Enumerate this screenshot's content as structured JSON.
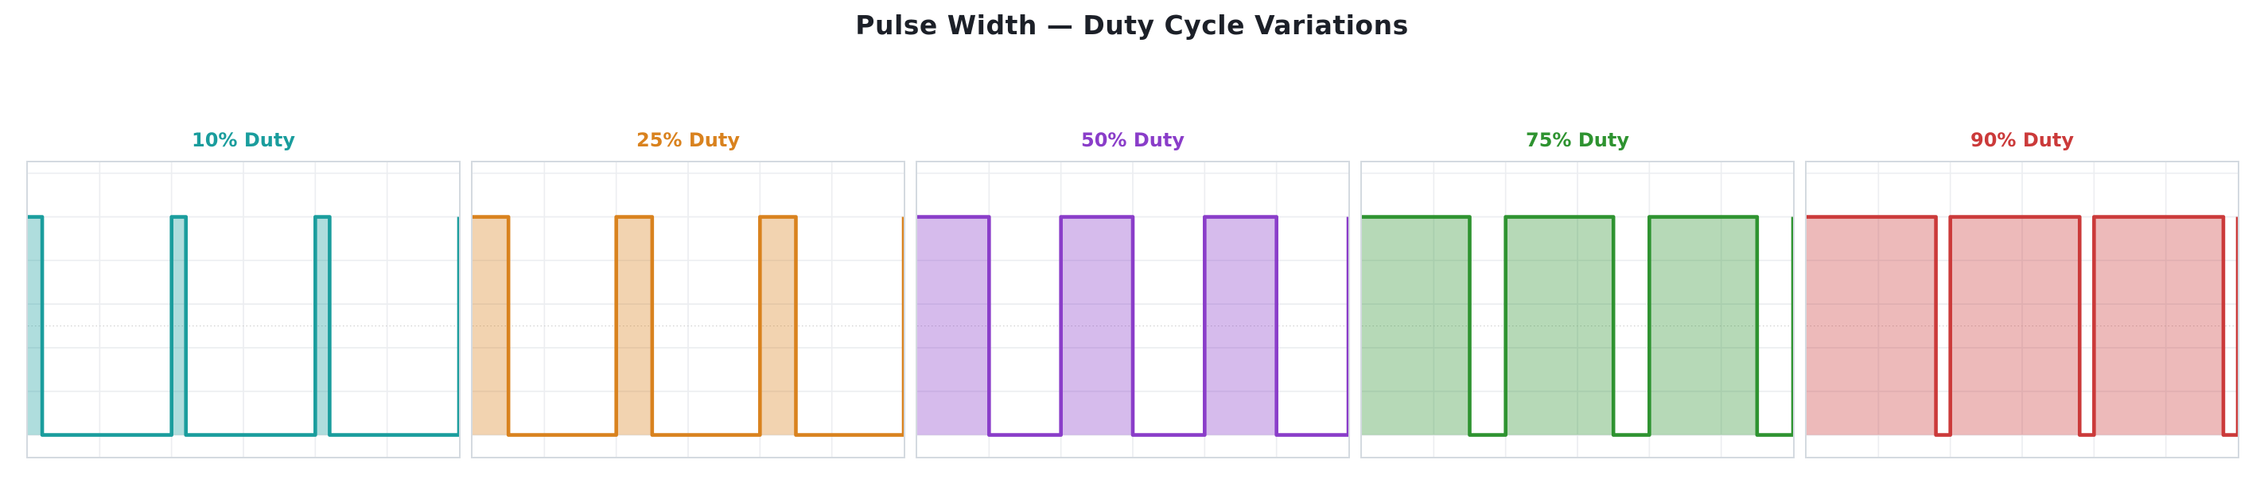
{
  "page": {
    "title": "Pulse Width — Duty Cycle Variations",
    "title_color": "#1C2028",
    "background": "#FFFFFF"
  },
  "chart_data": {
    "type": "line",
    "subtype": "square-wave-pulse-train",
    "layout": "1 row x 5 subplots",
    "x": {
      "min": 0,
      "max": 3,
      "grid_step": 0.5,
      "unit": "periods",
      "tick_labels_shown": false
    },
    "y": {
      "min": -0.1,
      "max": 1.25,
      "grid_step": 0.2,
      "grid_lines": [
        0,
        0.2,
        0.4,
        0.6,
        0.8,
        1.0,
        1.2
      ],
      "reference_line": 0.5,
      "high_level": 1,
      "low_level": 0,
      "tick_labels_shown": false
    },
    "cycles_shown": 3,
    "period": 1,
    "grid": true,
    "legend": "none",
    "grid_color": "#ECEEF1",
    "border_color": "#D4DAE0",
    "reference_line_color": "#CFCFCF",
    "fill_opacity": 0.35,
    "line_width": 4.6,
    "subplots": [
      {
        "title": "10% Duty",
        "duty_cycle_percent": 10,
        "duty": 0.1,
        "color": "#1A9D9D"
      },
      {
        "title": "25% Duty",
        "duty_cycle_percent": 25,
        "duty": 0.25,
        "color": "#D9821E"
      },
      {
        "title": "50% Duty",
        "duty_cycle_percent": 50,
        "duty": 0.5,
        "color": "#8A3DC9"
      },
      {
        "title": "75% Duty",
        "duty_cycle_percent": 75,
        "duty": 0.75,
        "color": "#2E9330"
      },
      {
        "title": "90% Duty",
        "duty_cycle_percent": 90,
        "duty": 0.9,
        "color": "#CB3A3A"
      }
    ]
  }
}
